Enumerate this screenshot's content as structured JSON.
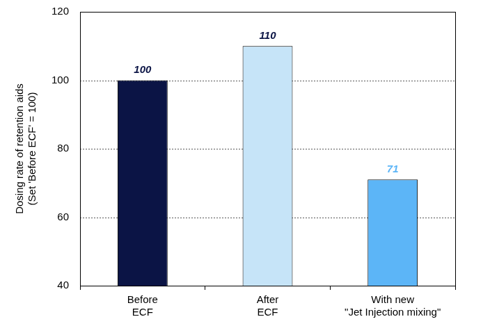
{
  "chart_data": {
    "type": "bar",
    "categories": [
      [
        "Before",
        "ECF"
      ],
      [
        "After",
        "ECF"
      ],
      [
        "With new",
        "\"Jet Injection mixing\""
      ]
    ],
    "values": [
      100,
      110,
      71
    ],
    "colors": [
      "#0b1445",
      "#c6e4f8",
      "#5cb5f7"
    ],
    "y_label": [
      "Dosing rate of retention aids",
      "(Set 'Before ECF' = 100)"
    ],
    "ylim": [
      40,
      120
    ],
    "yticks": [
      40,
      60,
      80,
      100,
      120
    ],
    "grid": true,
    "data_labels": true
  }
}
